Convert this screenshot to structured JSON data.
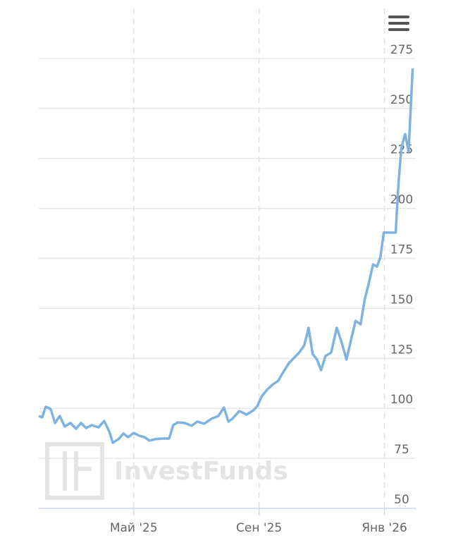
{
  "chart_data": {
    "type": "line",
    "watermark": "InvestFunds",
    "x": [
      0.97,
      1.08,
      1.19,
      1.35,
      1.49,
      1.64,
      1.8,
      1.98,
      2.16,
      2.32,
      2.48,
      2.66,
      2.88,
      3.06,
      3.22,
      3.33,
      3.51,
      3.67,
      3.82,
      4.0,
      4.18,
      4.34,
      4.5,
      4.68,
      4.9,
      5.13,
      5.26,
      5.4,
      5.62,
      5.85,
      6.03,
      6.25,
      6.48,
      6.7,
      6.88,
      7.02,
      7.15,
      7.37,
      7.6,
      7.82,
      7.94,
      8.09,
      8.27,
      8.45,
      8.61,
      8.77,
      8.95,
      9.13,
      9.28,
      9.44,
      9.58,
      9.71,
      9.85,
      9.98,
      10.12,
      10.3,
      10.48,
      10.63,
      10.79,
      10.93,
      11.08,
      11.24,
      11.37,
      11.51,
      11.64,
      11.76,
      11.87,
      11.98,
      12.36,
      12.45,
      12.54,
      12.66,
      12.77,
      12.9
    ],
    "series": [
      {
        "color": "#7eb2e0",
        "values": [
          96.2,
          95.5,
          100.8,
          99.7,
          92.7,
          96.2,
          90.9,
          92.7,
          89.8,
          92.7,
          90.2,
          91.6,
          90.5,
          93.7,
          88.4,
          82.8,
          84.6,
          87.4,
          85.6,
          87.7,
          86.3,
          85.6,
          83.9,
          84.6,
          84.9,
          84.9,
          91.6,
          93.0,
          92.7,
          91.3,
          93.4,
          92.3,
          94.8,
          96.2,
          100.4,
          93.4,
          94.8,
          98.7,
          96.9,
          99.0,
          101.1,
          106.1,
          109.6,
          112.1,
          113.8,
          118.1,
          122.6,
          125.5,
          127.9,
          131.5,
          140.3,
          127.2,
          124.4,
          119.1,
          126.2,
          127.9,
          140.3,
          133.2,
          124.4,
          133.9,
          143.8,
          142.0,
          154.4,
          163.2,
          172.0,
          170.9,
          175.5,
          187.9,
          187.9,
          212.6,
          230.2,
          237.2,
          228.4,
          270.0
        ]
      }
    ],
    "xlim": [
      0.97,
      13.0
    ],
    "xticks": [
      {
        "value": 4,
        "label": "Май '25"
      },
      {
        "value": 8,
        "label": "Сен '25"
      },
      {
        "value": 12,
        "label": "Янв '26"
      }
    ],
    "ylim": [
      50,
      300
    ],
    "yticks": [
      50,
      75,
      100,
      125,
      150,
      175,
      200,
      225,
      250,
      275
    ],
    "grid": true
  }
}
